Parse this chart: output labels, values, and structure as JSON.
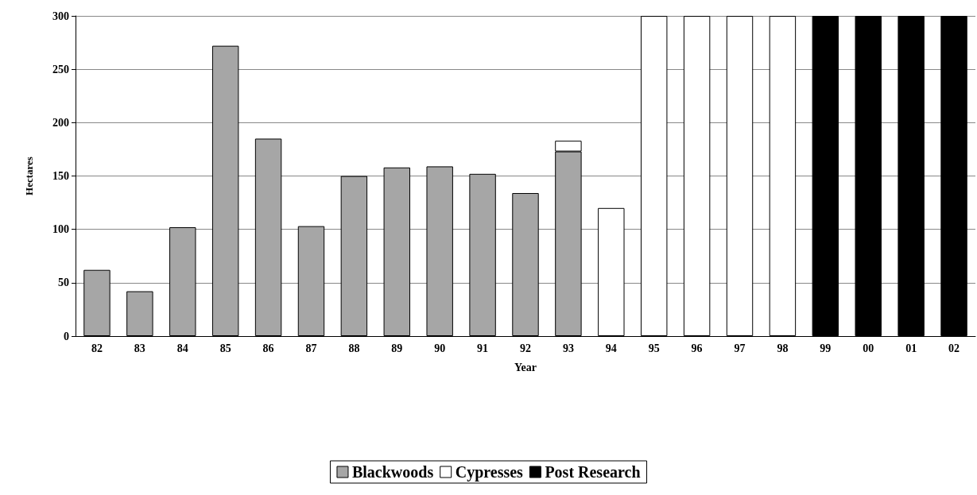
{
  "chart_data": {
    "type": "bar",
    "stacked": true,
    "xlabel": "Year",
    "ylabel": "Hectares",
    "categories": [
      "82",
      "83",
      "84",
      "85",
      "86",
      "87",
      "88",
      "89",
      "90",
      "91",
      "92",
      "93",
      "94",
      "95",
      "96",
      "97",
      "98",
      "99",
      "00",
      "01",
      "02"
    ],
    "series": [
      {
        "name": "Blackwoods",
        "color": "#a6a6a6",
        "values": [
          62,
          42,
          102,
          272,
          185,
          103,
          150,
          158,
          159,
          152,
          134,
          173,
          null,
          null,
          null,
          null,
          null,
          null,
          null,
          null,
          null
        ]
      },
      {
        "name": "Cypresses",
        "color": "#ffffff",
        "values": [
          null,
          null,
          null,
          null,
          null,
          null,
          null,
          null,
          null,
          null,
          null,
          10,
          120,
          300,
          300,
          300,
          300,
          null,
          null,
          null,
          null
        ]
      },
      {
        "name": "Post Research",
        "color": "#000000",
        "values": [
          null,
          null,
          null,
          null,
          null,
          null,
          null,
          null,
          null,
          null,
          null,
          null,
          null,
          null,
          null,
          null,
          null,
          300,
          300,
          300,
          300
        ]
      }
    ],
    "ylim": [
      0,
      300
    ],
    "yticks": [
      0,
      50,
      100,
      150,
      200,
      250,
      300
    ],
    "grid": "y",
    "legend": "bottom"
  }
}
